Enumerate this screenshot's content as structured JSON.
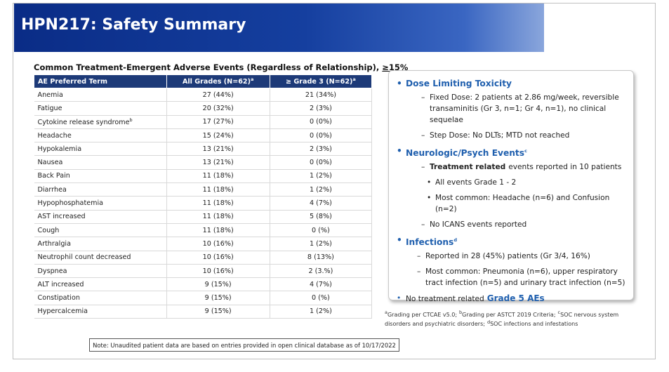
{
  "header": {
    "title": "HPN217: Safety Summary"
  },
  "table": {
    "caption": "Common Treatment-Emergent Adverse Events (Regardless of Relationship),",
    "caption_threshold": "≥15%",
    "columns": [
      {
        "text": "AE Preferred Term"
      },
      {
        "text": "All Grades (N=62)",
        "sup": "a"
      },
      {
        "text": "≥ Grade 3 (N=62)",
        "sup": "a"
      }
    ],
    "rows": [
      {
        "term": "Anemia",
        "all": "27 (44%)",
        "g3": "21 (34%)"
      },
      {
        "term": "Fatigue",
        "all": "20 (32%)",
        "g3": "2 (3%)"
      },
      {
        "term": "Cytokine release syndrome",
        "sup": "b",
        "all": "17 (27%)",
        "g3": "0 (0%)"
      },
      {
        "term": "Headache",
        "all": "15 (24%)",
        "g3": "0 (0%)"
      },
      {
        "term": "Hypokalemia",
        "all": "13 (21%)",
        "g3": "2 (3%)"
      },
      {
        "term": "Nausea",
        "all": "13 (21%)",
        "g3": "0 (0%)"
      },
      {
        "term": "Back Pain",
        "all": "11 (18%)",
        "g3": "1 (2%)"
      },
      {
        "term": "Diarrhea",
        "all": "11 (18%)",
        "g3": "1 (2%)"
      },
      {
        "term": "Hypophosphatemia",
        "all": "11 (18%)",
        "g3": "4 (7%)"
      },
      {
        "term": "AST increased",
        "all": "11 (18%)",
        "g3": "5 (8%)"
      },
      {
        "term": "Cough",
        "all": "11 (18%)",
        "g3": "0 (%)"
      },
      {
        "term": "Arthralgia",
        "all": "10 (16%)",
        "g3": "1 (2%)"
      },
      {
        "term": "Neutrophil count decreased",
        "all": "10 (16%)",
        "g3": "8 (13%)"
      },
      {
        "term": "Dyspnea",
        "all": "10 (16%)",
        "g3": "2 (3.%)"
      },
      {
        "term": "ALT increased",
        "all": "9 (15%)",
        "g3": "4 (7%)"
      },
      {
        "term": "Constipation",
        "all": "9 (15%)",
        "g3": "0 (%)"
      },
      {
        "term": "Hypercalcemia",
        "all": "9 (15%)",
        "g3": "1 (2%)"
      }
    ]
  },
  "panel": {
    "sections": [
      {
        "heading": "Dose Limiting Toxicity",
        "items": [
          {
            "level": 1,
            "text": "Fixed Dose: 2 patients at 2.86 mg/week, reversible transaminitis (Gr 3, n=1; Gr 4, n=1), no clinical sequelae"
          },
          {
            "level": 1,
            "text": "Step Dose: No DLTs; MTD not reached"
          }
        ]
      },
      {
        "heading": "Neurologic/Psych Events",
        "sup": "c",
        "items": [
          {
            "level": 1,
            "lead": "Treatment related",
            "text": "events reported in 10 patients"
          },
          {
            "level": 2,
            "text": "All events Grade 1 - 2"
          },
          {
            "level": 2,
            "text": "Most common: Headache (n=6) and Confusion (n=2)"
          },
          {
            "level": 1,
            "text": "No ICANS events reported"
          }
        ]
      },
      {
        "heading": "Infections",
        "sup": "d",
        "items": [
          {
            "level": 1,
            "text": "Reported in  28 (45%) patients (Gr 3/4, 16%)"
          },
          {
            "level": 1,
            "text": "Most common: Pneumonia (n=6), upper respiratory tract infection (n=5) and urinary tract infection (n=5)"
          }
        ]
      }
    ],
    "closing": "No treatment related",
    "closing_emphasis": "Grade 5 AEs"
  },
  "footnotes": [
    {
      "sup": "a",
      "text": "Grading per CTCAE v5.0;"
    },
    {
      "sup": "b",
      "text": "Grading per ASTCT 2019 Criteria;"
    },
    {
      "sup": "c",
      "text": "SOC nervous system disorders and psychiatric disorders;"
    },
    {
      "sup": "d",
      "text": "SOC infections and infestations"
    }
  ],
  "note": "Note: Unaudited patient data are based on entries provided in open clinical database as of 10/17/2022"
}
